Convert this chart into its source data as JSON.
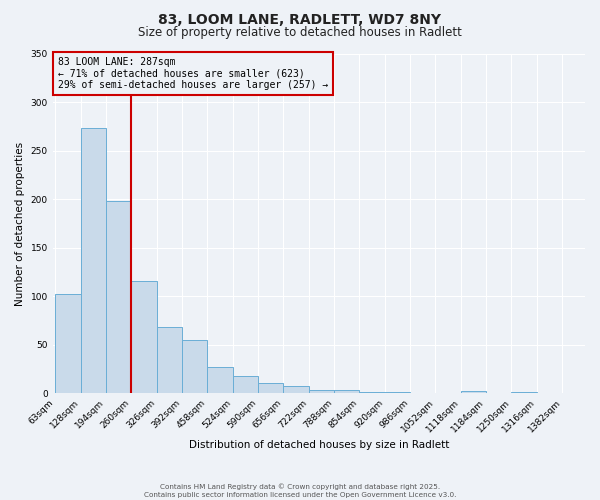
{
  "title": "83, LOOM LANE, RADLETT, WD7 8NY",
  "subtitle": "Size of property relative to detached houses in Radlett",
  "xlabel": "Distribution of detached houses by size in Radlett",
  "ylabel": "Number of detached properties",
  "bar_values": [
    102,
    273,
    198,
    116,
    68,
    55,
    27,
    18,
    11,
    8,
    4,
    4,
    1,
    1,
    0,
    0,
    3,
    0,
    1,
    0
  ],
  "bin_labels": [
    "63sqm",
    "128sqm",
    "194sqm",
    "260sqm",
    "326sqm",
    "392sqm",
    "458sqm",
    "524sqm",
    "590sqm",
    "656sqm",
    "722sqm",
    "788sqm",
    "854sqm",
    "920sqm",
    "986sqm",
    "1052sqm",
    "1118sqm",
    "1184sqm",
    "1250sqm",
    "1316sqm",
    "1382sqm"
  ],
  "bar_color": "#c9daea",
  "bar_edge_color": "#6aaed6",
  "vline_color": "#cc0000",
  "annotation_lines": [
    "83 LOOM LANE: 287sqm",
    "← 71% of detached houses are smaller (623)",
    "29% of semi-detached houses are larger (257) →"
  ],
  "annotation_box_color": "#cc0000",
  "ylim": [
    0,
    350
  ],
  "background_color": "#eef2f7",
  "grid_color": "#ffffff",
  "footer_lines": [
    "Contains HM Land Registry data © Crown copyright and database right 2025.",
    "Contains public sector information licensed under the Open Government Licence v3.0."
  ]
}
